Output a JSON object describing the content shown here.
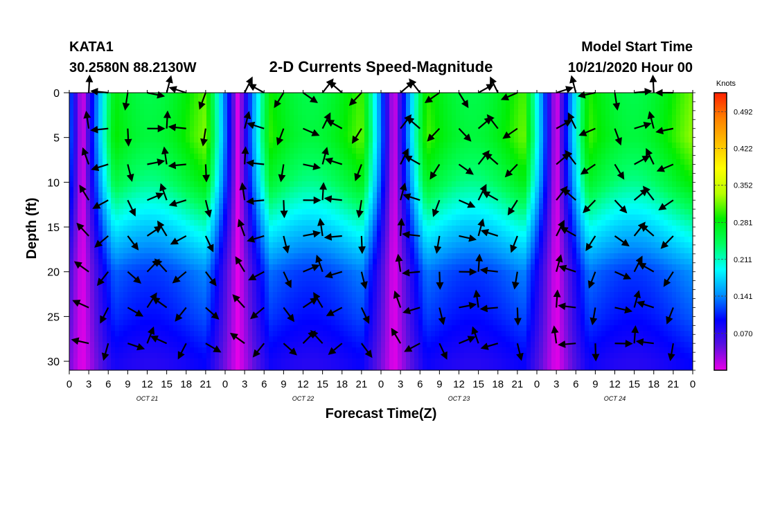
{
  "header": {
    "station": "KATA1",
    "coords": "30.2580N 88.2130W",
    "title": "2-D Currents Speed-Magnitude",
    "model_start_label": "Model Start Time",
    "model_start_value": "10/21/2020 Hour 00"
  },
  "chart_data": {
    "type": "heatmap",
    "title": "2-D Currents Speed-Magnitude",
    "xlabel": "Forecast Time(Z)",
    "ylabel": "Depth (ft)",
    "x_range_hours": [
      0,
      96
    ],
    "ylim": [
      0,
      31
    ],
    "y_inverted": true,
    "x_ticks": [
      "0",
      "3",
      "6",
      "9",
      "12",
      "15",
      "18",
      "21",
      "0",
      "3",
      "6",
      "9",
      "12",
      "15",
      "18",
      "21",
      "0",
      "3",
      "6",
      "9",
      "12",
      "15",
      "18",
      "21",
      "0",
      "3",
      "6",
      "9",
      "12",
      "15",
      "18",
      "21",
      "0"
    ],
    "y_ticks": [
      0,
      5,
      10,
      15,
      20,
      25,
      30
    ],
    "day_labels": [
      {
        "label": "OCT 21",
        "hour": 12
      },
      {
        "label": "OCT 22",
        "hour": 36
      },
      {
        "label": "OCT 23",
        "hour": 60
      },
      {
        "label": "OCT 24",
        "hour": 84
      }
    ],
    "colorbar": {
      "unit": "Knots",
      "ticks": [
        "0.492",
        "0.422",
        "0.352",
        "0.281",
        "0.211",
        "0.141",
        "0.070"
      ],
      "tick_values": [
        0.492,
        0.422,
        0.352,
        0.281,
        0.211,
        0.141,
        0.07
      ],
      "range": [
        0.0,
        0.528
      ],
      "colors": [
        "#e800e8",
        "#5a10e0",
        "#0000ff",
        "#0090ff",
        "#00ffff",
        "#00ff60",
        "#00ee00",
        "#b8ff00",
        "#ffff00",
        "#ffc000",
        "#ff8000",
        "#ff2000"
      ]
    },
    "speed_by_depth": {
      "depths": [
        0,
        5,
        10,
        15,
        20,
        25,
        30
      ],
      "slack_hours": [
        2,
        26,
        50,
        75
      ],
      "peak_speed": [
        0.33,
        0.34,
        0.3,
        0.22,
        0.15,
        0.13,
        0.1
      ]
    },
    "vector_depths": [
      0,
      4,
      8,
      12,
      16,
      20,
      24,
      28
    ],
    "vector_hours": [
      3,
      6,
      9,
      12,
      15,
      18,
      21,
      27,
      30,
      33,
      36,
      39,
      42,
      45,
      51,
      54,
      57,
      60,
      63,
      66,
      69,
      75,
      78,
      81,
      84,
      87,
      90,
      93
    ]
  }
}
